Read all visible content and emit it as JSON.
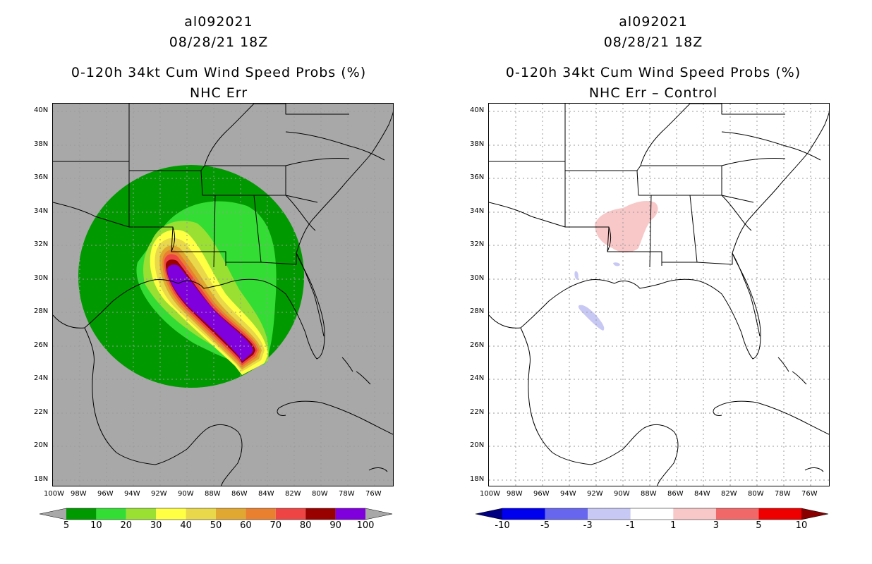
{
  "panels": [
    {
      "storm": "al092021",
      "datetime": "08/28/21 18Z",
      "product": "0-120h 34kt Cum Wind Speed Probs (%)",
      "subtitle": "NHC Err",
      "colorbar": {
        "labels": [
          "5",
          "10",
          "20",
          "30",
          "40",
          "50",
          "60",
          "70",
          "80",
          "90",
          "100"
        ],
        "colors": [
          "#009900",
          "#33dd33",
          "#99e033",
          "#ffff44",
          "#e8d84a",
          "#e0a830",
          "#e88030",
          "#ee4444",
          "#990000",
          "#8000dd"
        ]
      }
    },
    {
      "storm": "al092021",
      "datetime": "08/28/21 18Z",
      "product": "0-120h 34kt Cum Wind Speed Probs (%)",
      "subtitle": "NHC Err – Control",
      "colorbar": {
        "labels": [
          "-10",
          "-5",
          "-3",
          "-1",
          "1",
          "3",
          "5",
          "10"
        ],
        "colors": [
          "#000080",
          "#0000ee",
          "#6666ee",
          "#c8c8f4",
          "#ffffff",
          "#f8c8c8",
          "#f06868",
          "#ee0000",
          "#880000"
        ]
      }
    }
  ],
  "axes": {
    "lat_labels": [
      "40N",
      "38N",
      "36N",
      "34N",
      "32N",
      "30N",
      "28N",
      "26N",
      "24N",
      "22N",
      "20N",
      "18N"
    ],
    "lon_labels": [
      "100W",
      "98W",
      "96W",
      "94W",
      "92W",
      "90W",
      "88W",
      "86W",
      "84W",
      "82W",
      "80W",
      "78W",
      "76W"
    ]
  }
}
